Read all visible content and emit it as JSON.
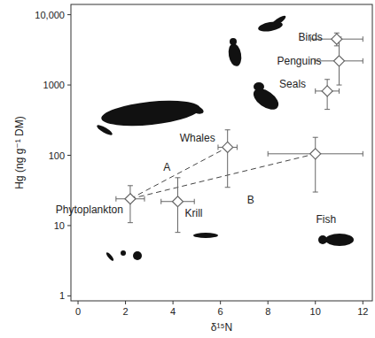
{
  "chart_data": {
    "type": "scatter",
    "xlabel": "δ¹⁵N",
    "ylabel": "Hg (ng g⁻¹ DM)",
    "log": "y",
    "marker": "diamond",
    "color": "#666666",
    "labels": [
      "Phytoplankton",
      "Krill",
      "Whales",
      "Fish",
      "Seals",
      "Penguins",
      "Birds"
    ],
    "x": [
      2.2,
      4.2,
      6.3,
      10.0,
      10.5,
      11.0,
      10.9
    ],
    "values": [
      24,
      22,
      130,
      105,
      820,
      2200,
      4500
    ],
    "x_err": [
      0.6,
      0.7,
      0.4,
      2.0,
      0.5,
      1.0,
      1.1
    ],
    "y_low": [
      11,
      8,
      35,
      30,
      450,
      1000,
      3600
    ],
    "y_high": [
      37,
      48,
      230,
      180,
      1200,
      4800,
      5500
    ],
    "line_style": "dashed",
    "lines": [
      {
        "label": "A",
        "from": "Phytoplankton",
        "to": "Whales"
      },
      {
        "label": "B",
        "from": "Phytoplankton",
        "to": "Fish"
      }
    ],
    "xlim": [
      -0.3,
      12.4
    ],
    "ylim": [
      0.85,
      14000
    ],
    "xticks": [
      0,
      2,
      4,
      6,
      8,
      10,
      12
    ],
    "yticks": [
      1,
      10,
      100,
      1000,
      {
        "value": 10000,
        "label": "10,000"
      }
    ]
  }
}
